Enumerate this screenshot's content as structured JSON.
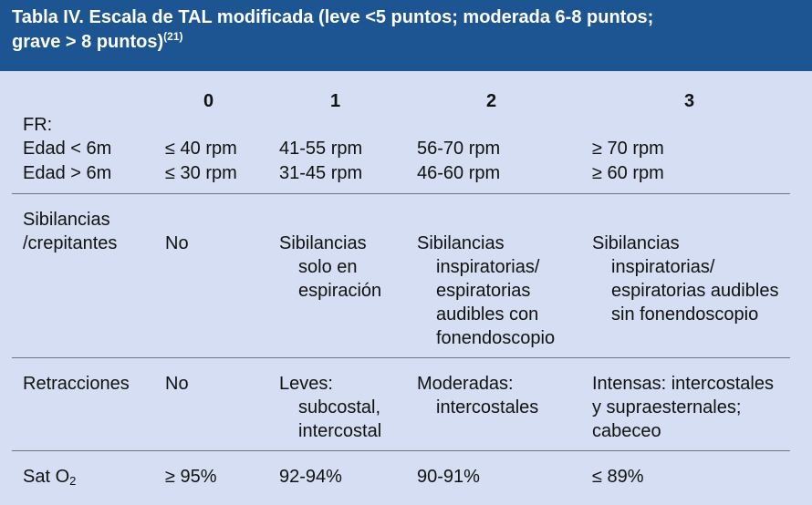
{
  "title": {
    "line1": "Tabla IV.  Escala de TAL modificada (leve <5 puntos; moderada 6-8 puntos;",
    "line2": "grave > 8 puntos)",
    "ref": "(21)"
  },
  "columns": [
    "0",
    "1",
    "2",
    "3"
  ],
  "fr": {
    "label": "FR:",
    "rows": [
      {
        "label": "Edad < 6m",
        "c0": "≤ 40 rpm",
        "c1": "41-55 rpm",
        "c2": "56-70 rpm",
        "c3": "≥ 70 rpm"
      },
      {
        "label": "Edad > 6m",
        "c0": "≤ 30 rpm",
        "c1": "31-45 rpm",
        "c2": "46-60 rpm",
        "c3": "≥ 60 rpm"
      }
    ]
  },
  "sibilancias": {
    "label_line1": "Sibilancias",
    "label_line2": "/crepitantes",
    "c0": "No",
    "c1": [
      "Sibilancias",
      "solo en",
      "espiración"
    ],
    "c2": [
      "Sibilancias",
      "inspiratorias/",
      "espiratorias",
      "audibles con",
      "fonendoscopio"
    ],
    "c3": [
      "Sibilancias",
      "inspiratorias/",
      "espiratorias audibles",
      "sin fonendoscopio"
    ]
  },
  "retracciones": {
    "label": "Retracciones",
    "c0": "No",
    "c1": [
      "Leves:",
      "subcostal,",
      "intercostal"
    ],
    "c2": [
      "Moderadas:",
      "intercostales"
    ],
    "c3": [
      "Intensas: intercostales",
      "y supraesternales;",
      "cabeceo"
    ]
  },
  "sat": {
    "label_prefix": "Sat O",
    "label_sub": "2",
    "c0": "≥ 95%",
    "c1": "92-94%",
    "c2": "90-91%",
    "c3": "≤ 89%"
  },
  "colors": {
    "header_bg": "#1d5592",
    "panel_bg": "#d5def2",
    "header_text": "#ffffff"
  }
}
